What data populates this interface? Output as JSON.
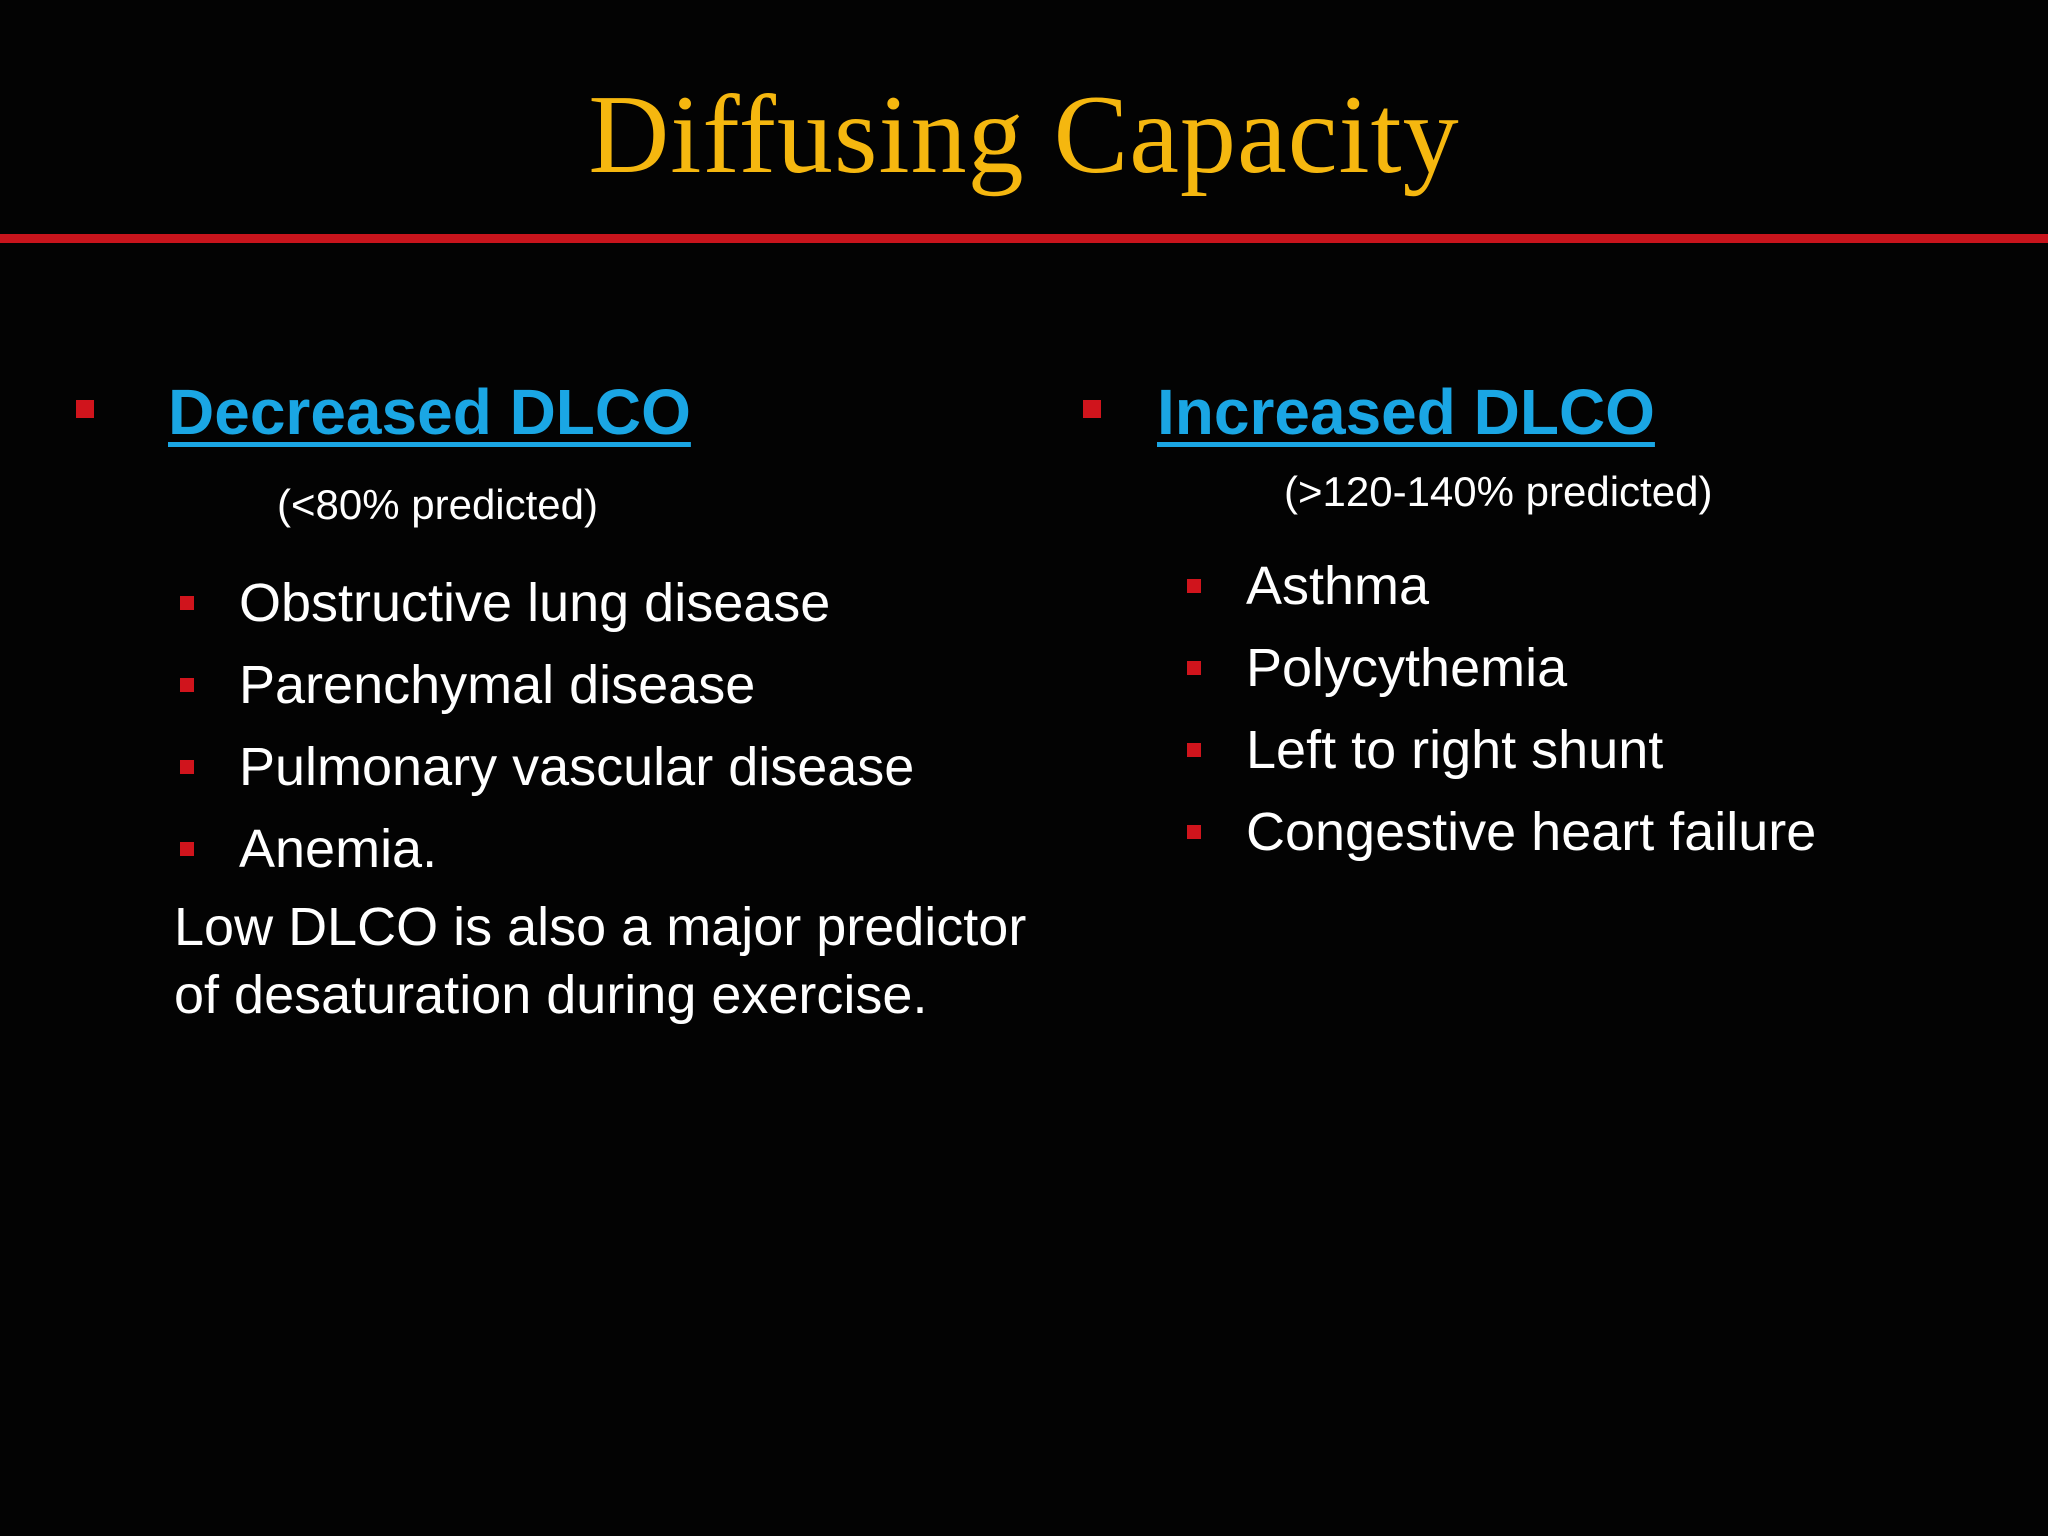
{
  "slide": {
    "title": "Diffusing Capacity",
    "colors": {
      "title": "#f5b70f",
      "rule": "#c8141c",
      "heading": "#1aa6e4",
      "bullet": "#d0141c",
      "text": "#ffffff",
      "background": "#030303"
    }
  },
  "left": {
    "heading": "Decreased DLCO",
    "subheading": "(<80% predicted)",
    "items": [
      "Obstructive lung disease",
      "Parenchymal disease",
      "Pulmonary vascular disease",
      "Anemia."
    ],
    "note": "Low DLCO is also a major predictor of desaturation during exercise."
  },
  "right": {
    "heading": "Increased DLCO",
    "subheading": "(>120-140% predicted)",
    "items": [
      "Asthma",
      "Polycythemia",
      "Left to right shunt",
      "Congestive heart failure"
    ]
  }
}
